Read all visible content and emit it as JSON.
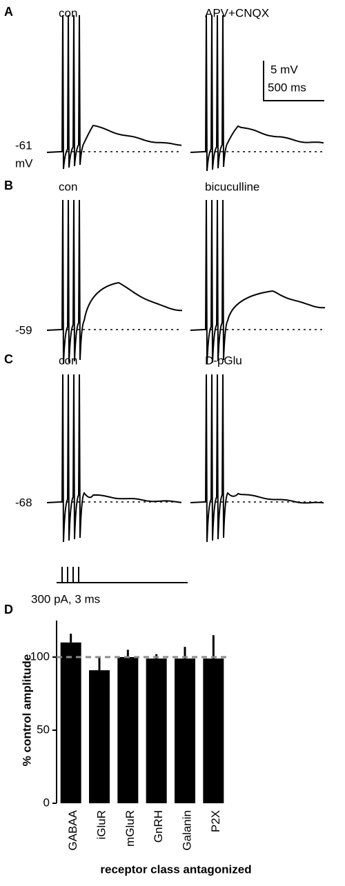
{
  "panels": [
    {
      "label": "A",
      "left": "con",
      "right": "APV+CNQX",
      "potential": "-61",
      "unit": "mV"
    },
    {
      "label": "B",
      "left": "con",
      "right": "bicuculline",
      "potential": "-59"
    },
    {
      "label": "C",
      "left": "con",
      "right": "D-pGlu",
      "potential": "-68"
    }
  ],
  "scale": {
    "voltage": "5 mV",
    "time": "500 ms"
  },
  "stimulus": "300 pA, 3 ms",
  "chart_data": {
    "type": "bar",
    "label": "D",
    "categories": [
      "GABAA",
      "iGluR",
      "mGluR",
      "GnRH",
      "Galanin",
      "P2X"
    ],
    "values": [
      110,
      91,
      100,
      99,
      99,
      99
    ],
    "errors": [
      6,
      9,
      5,
      3,
      8,
      16
    ],
    "color": "#000000",
    "reference_line": 100,
    "reference_color": "#8c8c8c",
    "ylabel": "% control amplitude",
    "xlabel": "receptor class antagonized",
    "ylim": [
      0,
      125
    ],
    "yticks": [
      0,
      50,
      100
    ]
  }
}
